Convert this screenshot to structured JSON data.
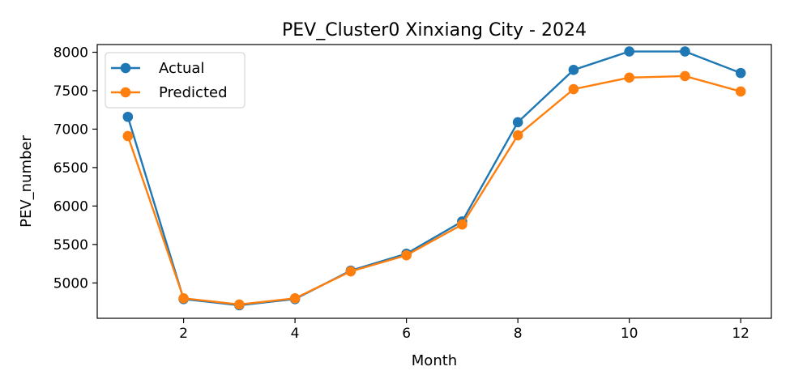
{
  "chart_data": {
    "type": "line",
    "title": "PEV_Cluster0 Xinxiang City - 2024",
    "xlabel": "Month",
    "ylabel": "PEV_number",
    "x": [
      1,
      2,
      3,
      4,
      5,
      6,
      7,
      8,
      9,
      10,
      11,
      12
    ],
    "series": [
      {
        "name": "Actual",
        "color": "#1f77b4",
        "values": [
          7160,
          4790,
          4710,
          4790,
          5160,
          5380,
          5800,
          7090,
          7770,
          8010,
          8010,
          7730
        ]
      },
      {
        "name": "Predicted",
        "color": "#ff7f0e",
        "values": [
          6910,
          4800,
          4720,
          4800,
          5150,
          5360,
          5760,
          6920,
          7520,
          7670,
          7690,
          7490
        ]
      }
    ],
    "xlim": [
      0.45,
      12.55
    ],
    "ylim": [
      4540,
      8100
    ],
    "xticks": [
      2,
      4,
      6,
      8,
      10,
      12
    ],
    "yticks": [
      5000,
      5500,
      6000,
      6500,
      7000,
      7500,
      8000
    ],
    "grid": false,
    "legend_position": "top-left",
    "markers": "circle"
  }
}
